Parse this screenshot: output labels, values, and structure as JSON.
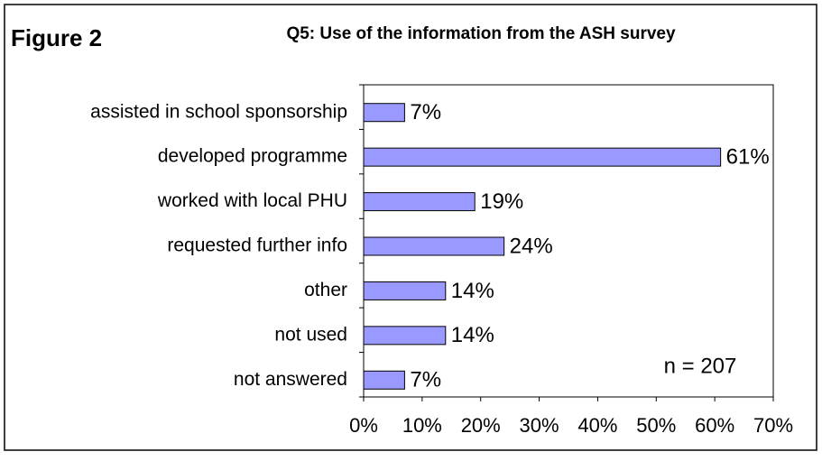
{
  "chart_data": {
    "type": "barh",
    "figure_label": "Figure 2",
    "title": "Q5: Use of the information from the ASH survey",
    "annotation": "n = 207",
    "categories": [
      "assisted in school sponsorship",
      "developed programme",
      "worked with local PHU",
      "requested further info",
      "other",
      "not used",
      "not answered"
    ],
    "values": [
      7,
      61,
      19,
      24,
      14,
      14,
      7
    ],
    "value_labels": [
      "7%",
      "61%",
      "19%",
      "24%",
      "14%",
      "14%",
      "7%"
    ],
    "color": "#9999ff",
    "xlim": [
      0,
      70
    ],
    "xticks": [
      {
        "value": 0,
        "label": "0%"
      },
      {
        "value": 10,
        "label": "10%"
      },
      {
        "value": 20,
        "label": "20%"
      },
      {
        "value": 30,
        "label": "30%"
      },
      {
        "value": 40,
        "label": "40%"
      },
      {
        "value": 50,
        "label": "50%"
      },
      {
        "value": 60,
        "label": "60%"
      },
      {
        "value": 70,
        "label": "70%"
      }
    ],
    "grid": false
  }
}
